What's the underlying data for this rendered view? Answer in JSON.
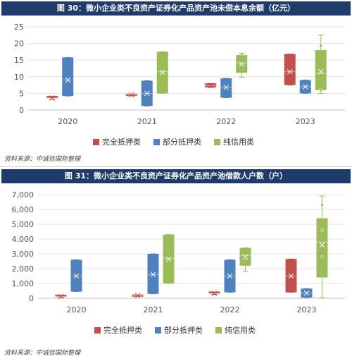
{
  "chart_data": [
    {
      "type": "boxplot",
      "title": "图 30：微小企业类不良资产证券化产品资产池未偿本息余额（亿元）",
      "categories": [
        "2020",
        "2021",
        "2022",
        "2023"
      ],
      "ylim": [
        0,
        25
      ],
      "yticks": [
        0,
        5,
        10,
        15,
        20,
        25
      ],
      "grid": true,
      "legend_position": "bottom",
      "series": [
        {
          "name": "完全抵押类",
          "color": "#c0504d",
          "values": [
            {
              "min": 3.2,
              "q1": 3.3,
              "median": 3.6,
              "q3": 3.9,
              "max": 4.0,
              "mean": 3.6,
              "outliers": []
            },
            {
              "min": 4.5,
              "q1": 4.5,
              "median": 4.5,
              "q3": 4.5,
              "max": 4.5,
              "mean": 4.5,
              "outliers": []
            },
            {
              "min": 6.8,
              "q1": 6.8,
              "median": 7.3,
              "q3": 8.0,
              "max": 8.0,
              "mean": 7.3,
              "outliers": []
            },
            {
              "min": 7.5,
              "q1": 7.5,
              "median": 11.5,
              "q3": 16.8,
              "max": 16.8,
              "mean": 11.5,
              "outliers": []
            }
          ]
        },
        {
          "name": "部分抵押类",
          "color": "#4f81bd",
          "values": [
            {
              "min": 4.2,
              "q1": 4.2,
              "median": 9.0,
              "q3": 15.8,
              "max": 15.8,
              "mean": 9.0,
              "outliers": []
            },
            {
              "min": 1.2,
              "q1": 1.2,
              "median": 5.0,
              "q3": 8.8,
              "max": 8.8,
              "mean": 5.0,
              "outliers": []
            },
            {
              "min": 3.7,
              "q1": 3.7,
              "median": 6.8,
              "q3": 9.5,
              "max": 9.5,
              "mean": 6.8,
              "outliers": []
            },
            {
              "min": 5.0,
              "q1": 5.0,
              "median": 7.0,
              "q3": 9.0,
              "max": 9.0,
              "mean": 7.0,
              "outliers": []
            }
          ]
        },
        {
          "name": "纯信用类",
          "color": "#9bbb59",
          "values": [
            null,
            {
              "min": 5.0,
              "q1": 5.0,
              "median": 11.5,
              "q3": 17.5,
              "max": 17.5,
              "mean": 11.3,
              "outliers": []
            },
            {
              "min": 9.8,
              "q1": 11.2,
              "median": 14.0,
              "q3": 16.5,
              "max": 17.0,
              "mean": 13.8,
              "outliers": [
                16.8
              ]
            },
            {
              "min": 5.0,
              "q1": 6.0,
              "median": 11.0,
              "q3": 18.0,
              "max": 22.5,
              "mean": 11.5,
              "outliers": [
                19.3,
                6.0
              ]
            }
          ]
        }
      ]
    },
    {
      "type": "boxplot",
      "title": "图 31：微小企业类不良资产证券化产品资产池借款人户数（户）",
      "categories": [
        "2020",
        "2021",
        "2022",
        "2023"
      ],
      "ylim": [
        0,
        7000
      ],
      "yticks": [
        0,
        1000,
        2000,
        3000,
        4000,
        5000,
        6000,
        7000
      ],
      "ytick_labels": [
        "0",
        "1,000",
        "2,000",
        "3,000",
        "4,000",
        "5,000",
        "6,000",
        "7,000"
      ],
      "grid": true,
      "legend_position": "bottom",
      "series": [
        {
          "name": "完全抵押类",
          "color": "#c0504d",
          "values": [
            {
              "min": 60,
              "q1": 60,
              "median": 120,
              "q3": 160,
              "max": 160,
              "mean": 120,
              "outliers": []
            },
            {
              "min": 180,
              "q1": 180,
              "median": 180,
              "q3": 180,
              "max": 180,
              "mean": 180,
              "outliers": []
            },
            {
              "min": 260,
              "q1": 260,
              "median": 320,
              "q3": 380,
              "max": 380,
              "mean": 320,
              "outliers": []
            },
            {
              "min": 400,
              "q1": 400,
              "median": 1500,
              "q3": 2650,
              "max": 2650,
              "mean": 1500,
              "outliers": []
            }
          ]
        },
        {
          "name": "部分抵押类",
          "color": "#4f81bd",
          "values": [
            {
              "min": 450,
              "q1": 450,
              "median": 1500,
              "q3": 2600,
              "max": 2600,
              "mean": 1500,
              "outliers": []
            },
            {
              "min": 300,
              "q1": 300,
              "median": 1600,
              "q3": 3000,
              "max": 3000,
              "mean": 1600,
              "outliers": []
            },
            {
              "min": 400,
              "q1": 400,
              "median": 1500,
              "q3": 2600,
              "max": 2600,
              "mean": 1500,
              "outliers": []
            },
            {
              "min": 50,
              "q1": 50,
              "median": 350,
              "q3": 650,
              "max": 650,
              "mean": 350,
              "outliers": []
            }
          ]
        },
        {
          "name": "纯信用类",
          "color": "#9bbb59",
          "values": [
            null,
            {
              "min": 1000,
              "q1": 1000,
              "median": 2700,
              "q3": 4300,
              "max": 4300,
              "mean": 2650,
              "outliers": []
            },
            {
              "min": 1800,
              "q1": 2200,
              "median": 2900,
              "q3": 3400,
              "max": 3400,
              "mean": 2800,
              "outliers": [
                2700
              ]
            },
            {
              "min": 30,
              "q1": 1400,
              "median": 3800,
              "q3": 5400,
              "max": 6900,
              "mean": 3600,
              "outliers": [
                6300,
                4600,
                2800
              ]
            }
          ]
        }
      ]
    }
  ],
  "source_note_1": "资料来源：中诚信国际整理",
  "source_note_2": "资料来源：中诚信国际整理"
}
